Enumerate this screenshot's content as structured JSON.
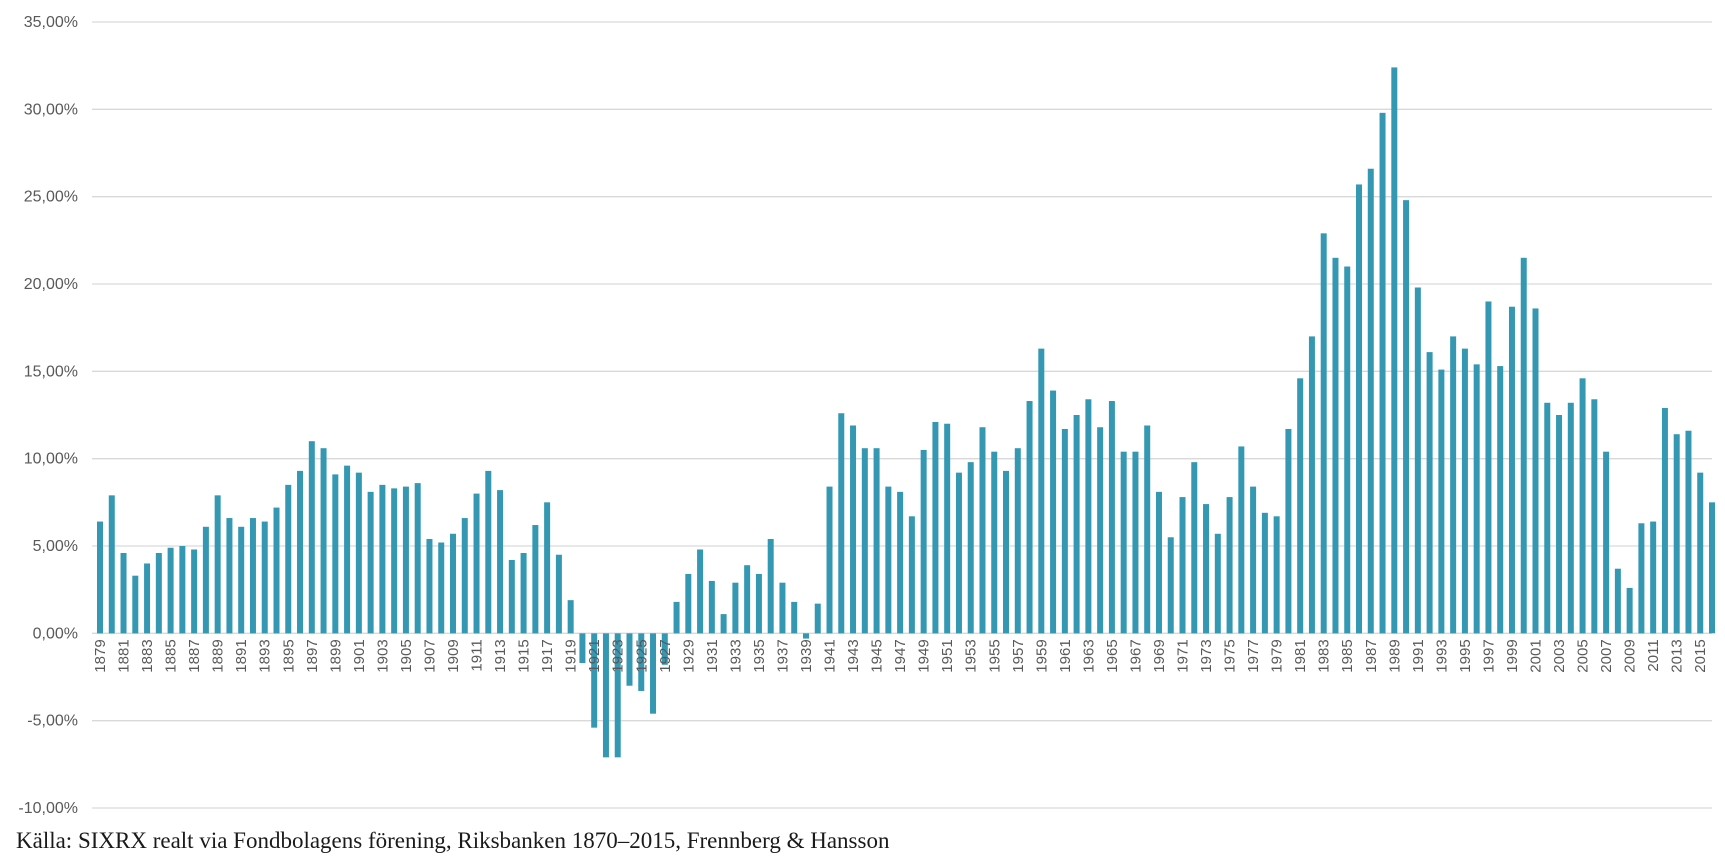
{
  "source_note": "Källa: SIXRX realt via Fondbolagens förening, Riksbanken 1870–2015, Frennberg & Hansson",
  "colors": {
    "bar": "#3498b2",
    "grid": "#d9d9d9",
    "tick_text": "#595959"
  },
  "chart_data": {
    "type": "bar",
    "title": "",
    "xlabel": "",
    "ylabel": "",
    "ylim": [
      -10,
      35
    ],
    "y_ticks": [
      35,
      30,
      25,
      20,
      15,
      10,
      5,
      0,
      -5,
      -10
    ],
    "y_tick_labels": [
      "35,00%",
      "30,00%",
      "25,00%",
      "20,00%",
      "15,00%",
      "10,00%",
      "5,00%",
      "0,00%",
      "-5,00%",
      "-10,00%"
    ],
    "grid": true,
    "x_tick_every": 2,
    "categories": [
      "1879",
      "1880",
      "1881",
      "1882",
      "1883",
      "1884",
      "1885",
      "1886",
      "1887",
      "1888",
      "1889",
      "1890",
      "1891",
      "1892",
      "1893",
      "1894",
      "1895",
      "1896",
      "1897",
      "1898",
      "1899",
      "1900",
      "1901",
      "1902",
      "1903",
      "1904",
      "1905",
      "1906",
      "1907",
      "1908",
      "1909",
      "1910",
      "1911",
      "1912",
      "1913",
      "1914",
      "1915",
      "1916",
      "1917",
      "1918",
      "1919",
      "1920",
      "1921",
      "1922",
      "1923",
      "1924",
      "1925",
      "1926",
      "1927",
      "1928",
      "1929",
      "1930",
      "1931",
      "1932",
      "1933",
      "1934",
      "1935",
      "1936",
      "1937",
      "1938",
      "1939",
      "1940",
      "1941",
      "1942",
      "1943",
      "1944",
      "1945",
      "1946",
      "1947",
      "1948",
      "1949",
      "1950",
      "1951",
      "1952",
      "1953",
      "1954",
      "1955",
      "1956",
      "1957",
      "1958",
      "1959",
      "1960",
      "1961",
      "1962",
      "1963",
      "1964",
      "1965",
      "1966",
      "1967",
      "1968",
      "1969",
      "1970",
      "1971",
      "1972",
      "1973",
      "1974",
      "1975",
      "1976",
      "1977",
      "1978",
      "1979",
      "1980",
      "1981",
      "1982",
      "1983",
      "1984",
      "1985",
      "1986",
      "1987",
      "1988",
      "1989",
      "1990",
      "1991",
      "1992",
      "1993",
      "1994",
      "1995",
      "1996",
      "1997",
      "1998",
      "1999",
      "2000",
      "2001",
      "2002",
      "2003",
      "2004",
      "2005",
      "2006",
      "2007",
      "2008",
      "2009",
      "2010",
      "2011",
      "2012",
      "2013",
      "2014",
      "2015",
      "2016"
    ],
    "values": [
      6.4,
      7.9,
      4.6,
      3.3,
      4.0,
      4.6,
      4.9,
      5.0,
      4.8,
      6.1,
      7.9,
      6.6,
      6.1,
      6.6,
      6.4,
      7.2,
      8.5,
      9.3,
      11.0,
      10.6,
      9.1,
      9.6,
      9.2,
      8.1,
      8.5,
      8.3,
      8.4,
      8.6,
      5.4,
      5.2,
      5.7,
      6.6,
      8.0,
      9.3,
      8.2,
      4.2,
      4.6,
      6.2,
      7.5,
      4.5,
      1.9,
      -1.7,
      -5.4,
      -7.1,
      -7.1,
      -3.0,
      -3.3,
      -4.6,
      -1.8,
      1.8,
      3.4,
      4.8,
      3.0,
      1.1,
      2.9,
      3.9,
      3.4,
      5.4,
      2.9,
      1.8,
      -0.3,
      1.7,
      8.4,
      12.6,
      11.9,
      10.6,
      10.6,
      8.4,
      8.1,
      6.7,
      10.5,
      12.1,
      12.0,
      9.2,
      9.8,
      11.8,
      10.4,
      9.3,
      10.6,
      13.3,
      16.3,
      13.9,
      11.7,
      12.5,
      13.4,
      11.8,
      13.3,
      10.4,
      10.4,
      11.9,
      8.1,
      5.5,
      7.8,
      9.8,
      7.4,
      5.7,
      7.8,
      10.7,
      8.4,
      6.9,
      6.7,
      11.7,
      14.6,
      17.0,
      22.9,
      21.5,
      21.0,
      25.7,
      26.6,
      29.8,
      32.4,
      24.8,
      19.8,
      16.1,
      15.1,
      17.0,
      16.3,
      15.4,
      19.0,
      15.3,
      18.7,
      21.5,
      18.6,
      13.2,
      12.5,
      13.2,
      14.6,
      13.4,
      10.4,
      3.7,
      2.6,
      6.3,
      6.4,
      12.9,
      11.4,
      11.6,
      9.2,
      7.5
    ]
  }
}
